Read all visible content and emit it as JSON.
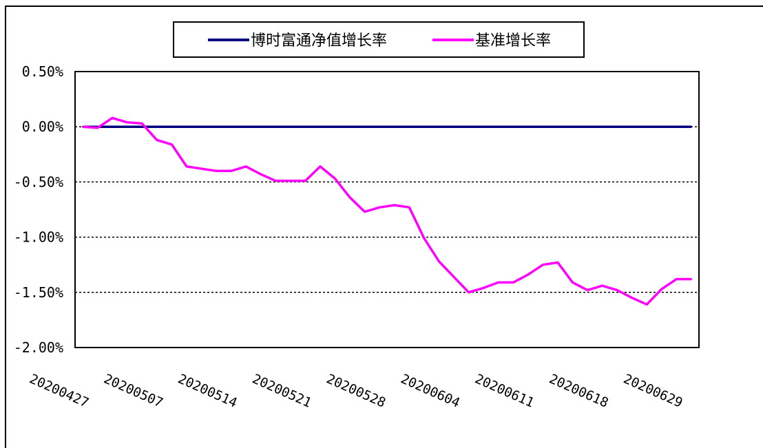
{
  "chart_data": {
    "type": "line",
    "title": "",
    "xlabel": "",
    "ylabel": "",
    "ylim": [
      -2.0,
      0.5
    ],
    "yticks": [
      0.5,
      0.0,
      -0.5,
      -1.0,
      -1.5,
      -2.0
    ],
    "ytick_labels": [
      "0.50%",
      "0.00%",
      "-0.50%",
      "-1.00%",
      "-1.50%",
      "-2.00%"
    ],
    "x_tick_labels": [
      "20200427",
      "20200507",
      "20200514",
      "20200521",
      "20200528",
      "20200604",
      "20200611",
      "20200618",
      "20200629"
    ],
    "grid": "horizontal dashed",
    "legend_position": "top-center",
    "x": [
      "20200424",
      "20200427",
      "20200428",
      "20200429",
      "20200430",
      "20200506",
      "20200507",
      "20200508",
      "20200511",
      "20200512",
      "20200513",
      "20200514",
      "20200515",
      "20200518",
      "20200519",
      "20200520",
      "20200521",
      "20200522",
      "20200525",
      "20200526",
      "20200527",
      "20200528",
      "20200529",
      "20200601",
      "20200602",
      "20200603",
      "20200604",
      "20200605",
      "20200608",
      "20200609",
      "20200610",
      "20200611",
      "20200612",
      "20200615",
      "20200616",
      "20200617",
      "20200618",
      "20200619",
      "20200622",
      "20200623",
      "20200624",
      "20200629"
    ],
    "x_tick_indices": [
      1,
      6,
      11,
      16,
      21,
      26,
      31,
      36,
      41
    ],
    "series": [
      {
        "name": "博时富通净值增长率",
        "color": "#000080",
        "values": [
          0,
          0,
          0,
          0,
          0,
          0,
          0,
          0,
          0,
          0,
          0,
          0,
          0,
          0,
          0,
          0,
          0,
          0,
          0,
          0,
          0,
          0,
          0,
          0,
          0,
          0,
          0,
          0,
          0,
          0,
          0,
          0,
          0,
          0,
          0,
          0,
          0,
          0,
          0,
          0,
          0,
          0
        ]
      },
      {
        "name": "基准增长率",
        "color": "#ff00ff",
        "values": [
          0.0,
          -0.01,
          0.08,
          0.04,
          0.03,
          -0.12,
          -0.16,
          -0.36,
          -0.38,
          -0.4,
          -0.4,
          -0.36,
          -0.43,
          -0.49,
          -0.49,
          -0.49,
          -0.36,
          -0.47,
          -0.64,
          -0.77,
          -0.73,
          -0.71,
          -0.73,
          -1.01,
          -1.22,
          -1.36,
          -1.5,
          -1.46,
          -1.41,
          -1.41,
          -1.34,
          -1.25,
          -1.23,
          -1.41,
          -1.48,
          -1.44,
          -1.48,
          -1.55,
          -1.61,
          -1.47,
          -1.38,
          -1.38
        ]
      }
    ]
  }
}
